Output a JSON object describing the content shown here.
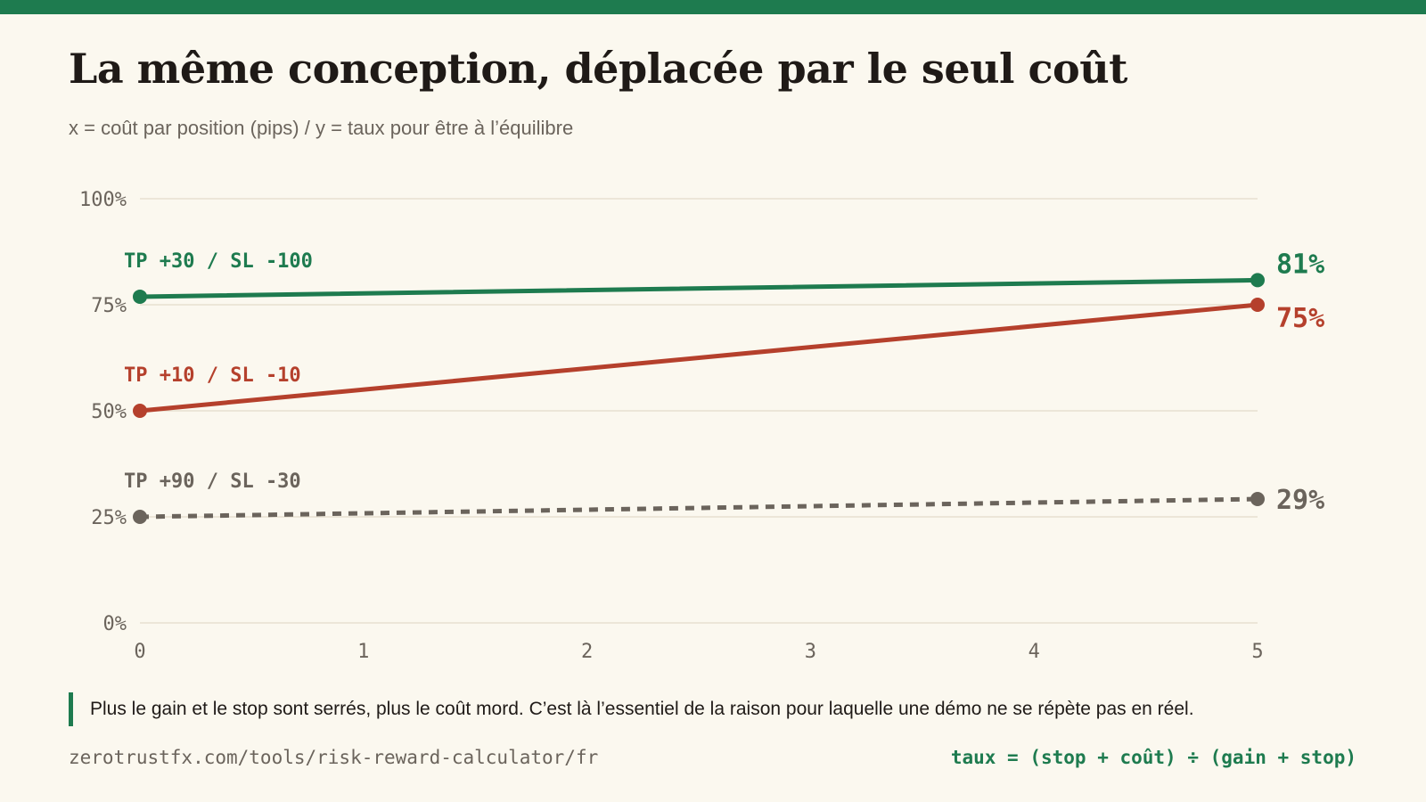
{
  "header": {
    "title": "La même conception, déplacée par le seul coût",
    "subtitle": "x = coût par position (pips) / y = taux pour être à l’équilibre"
  },
  "colors": {
    "accent": "#1e7b4f",
    "red": "#b5402c",
    "gray": "#6b645c",
    "background": "#fbf8ef",
    "grid": "#e2dccb"
  },
  "chart_data": {
    "type": "line",
    "title": "La même conception, déplacée par le seul coût",
    "xlabel": "",
    "ylabel": "",
    "x_ticks": [
      "0",
      "1",
      "2",
      "3",
      "4",
      "5"
    ],
    "xlim": [
      0,
      5
    ],
    "y_ticks": [
      "0%",
      "25%",
      "50%",
      "75%",
      "100%"
    ],
    "ylim": [
      0,
      1
    ],
    "grid": true,
    "series": [
      {
        "name": "TP +30 / SL -100",
        "color": "#1e7b4f",
        "style": "solid",
        "points": [
          [
            0,
            0.769
          ],
          [
            5,
            0.808
          ]
        ],
        "end_label": "81%"
      },
      {
        "name": "TP +10 / SL -10",
        "color": "#b5402c",
        "style": "solid",
        "points": [
          [
            0,
            0.5
          ],
          [
            5,
            0.75
          ]
        ],
        "end_label": "75%"
      },
      {
        "name": "TP +90 / SL -30",
        "color": "#6b645c",
        "style": "dashed",
        "points": [
          [
            0,
            0.25
          ],
          [
            5,
            0.292
          ]
        ],
        "end_label": "29%"
      }
    ]
  },
  "note": "Plus le gain et le stop sont serrés, plus le coût mord. C’est là l’essentiel de la raison pour laquelle une démo ne se répète pas en réel.",
  "footer": {
    "url": "zerotrustfx.com/tools/risk-reward-calculator/fr",
    "formula": "taux = (stop + coût) ÷ (gain + stop)"
  }
}
